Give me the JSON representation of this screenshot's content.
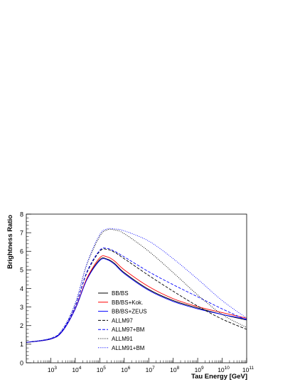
{
  "chart_data": {
    "type": "line",
    "xlabel": "Tau Energy [GeV]",
    "ylabel": "Brightness Ratio",
    "xscale": "log",
    "xlim": [
      100,
      100000000000
    ],
    "ylim": [
      0,
      8
    ],
    "x_ticks": [
      {
        "value": 1000,
        "mantissa": "10",
        "exp": "3"
      },
      {
        "value": 10000,
        "mantissa": "10",
        "exp": "4"
      },
      {
        "value": 100000,
        "mantissa": "10",
        "exp": "5"
      },
      {
        "value": 1000000,
        "mantissa": "10",
        "exp": "6"
      },
      {
        "value": 10000000,
        "mantissa": "10",
        "exp": "7"
      },
      {
        "value": 100000000,
        "mantissa": "10",
        "exp": "8"
      },
      {
        "value": 1000000000,
        "mantissa": "10",
        "exp": "9"
      },
      {
        "value": 10000000000,
        "mantissa": "10",
        "exp": "10"
      },
      {
        "value": 100000000000,
        "mantissa": "10",
        "exp": "11"
      }
    ],
    "y_ticks": [
      0,
      1,
      2,
      3,
      4,
      5,
      6,
      7,
      8
    ],
    "legend_position": "center-left",
    "grid": false,
    "series": [
      {
        "name": "BB/BS",
        "color": "#000000",
        "dash": "solid",
        "x": [
          100,
          1000,
          3000,
          10000,
          30000,
          100000,
          200000,
          400000,
          1000000,
          10000000,
          100000000,
          1000000000,
          10000000000,
          100000000000
        ],
        "y": [
          1.1,
          1.28,
          1.7,
          2.9,
          4.5,
          5.55,
          5.58,
          5.35,
          4.85,
          3.95,
          3.35,
          2.95,
          2.6,
          2.3
        ]
      },
      {
        "name": "BB/BS+Kok.",
        "color": "#ff0000",
        "dash": "solid",
        "x": [
          100,
          1000,
          3000,
          10000,
          30000,
          100000,
          200000,
          400000,
          1000000,
          10000000,
          100000000,
          1000000000,
          10000000000,
          100000000000
        ],
        "y": [
          1.1,
          1.28,
          1.7,
          2.92,
          4.55,
          5.65,
          5.7,
          5.48,
          5.0,
          4.1,
          3.45,
          3.02,
          2.7,
          2.4
        ]
      },
      {
        "name": "BB/BS+ZEUS",
        "color": "#0000ff",
        "dash": "solid",
        "x": [
          100,
          1000,
          3000,
          10000,
          30000,
          100000,
          200000,
          400000,
          1000000,
          10000000,
          100000000,
          1000000000,
          10000000000,
          100000000000
        ],
        "y": [
          1.1,
          1.28,
          1.7,
          2.9,
          4.48,
          5.5,
          5.55,
          5.3,
          4.8,
          3.9,
          3.3,
          2.9,
          2.6,
          2.35
        ]
      },
      {
        "name": "ALLM97",
        "color": "#000000",
        "dash": "dashed",
        "x": [
          100,
          1000,
          3000,
          10000,
          30000,
          100000,
          200000,
          400000,
          1000000,
          10000000,
          100000000,
          1000000000,
          10000000000,
          100000000000
        ],
        "y": [
          1.1,
          1.3,
          1.75,
          3.05,
          4.85,
          6.0,
          6.1,
          5.95,
          5.6,
          4.7,
          3.85,
          3.05,
          2.35,
          1.8
        ]
      },
      {
        "name": "ALLM97+BM",
        "color": "#0000ff",
        "dash": "dashed",
        "x": [
          100,
          1000,
          3000,
          10000,
          30000,
          100000,
          200000,
          400000,
          1000000,
          10000000,
          100000000,
          1000000000,
          10000000000,
          100000000000
        ],
        "y": [
          1.1,
          1.3,
          1.75,
          3.05,
          4.9,
          6.05,
          6.15,
          6.0,
          5.7,
          4.9,
          4.2,
          3.55,
          2.9,
          2.3
        ]
      },
      {
        "name": "ALLM91",
        "color": "#000000",
        "dash": "dotted",
        "x": [
          100,
          1000,
          3000,
          10000,
          30000,
          100000,
          200000,
          400000,
          1000000,
          10000000,
          100000000,
          1000000000,
          10000000000,
          100000000000
        ],
        "y": [
          1.1,
          1.32,
          1.8,
          3.2,
          5.3,
          6.8,
          7.15,
          7.15,
          6.95,
          6.0,
          4.85,
          3.65,
          2.6,
          1.9
        ]
      },
      {
        "name": "ALLM91+BM",
        "color": "#0000ff",
        "dash": "dotted",
        "x": [
          100,
          1000,
          3000,
          10000,
          30000,
          100000,
          200000,
          400000,
          1000000,
          10000000,
          100000000,
          1000000000,
          10000000000,
          100000000000
        ],
        "y": [
          1.1,
          1.32,
          1.8,
          3.2,
          5.35,
          6.9,
          7.2,
          7.2,
          7.1,
          6.55,
          5.6,
          4.5,
          3.35,
          2.4
        ]
      }
    ]
  }
}
